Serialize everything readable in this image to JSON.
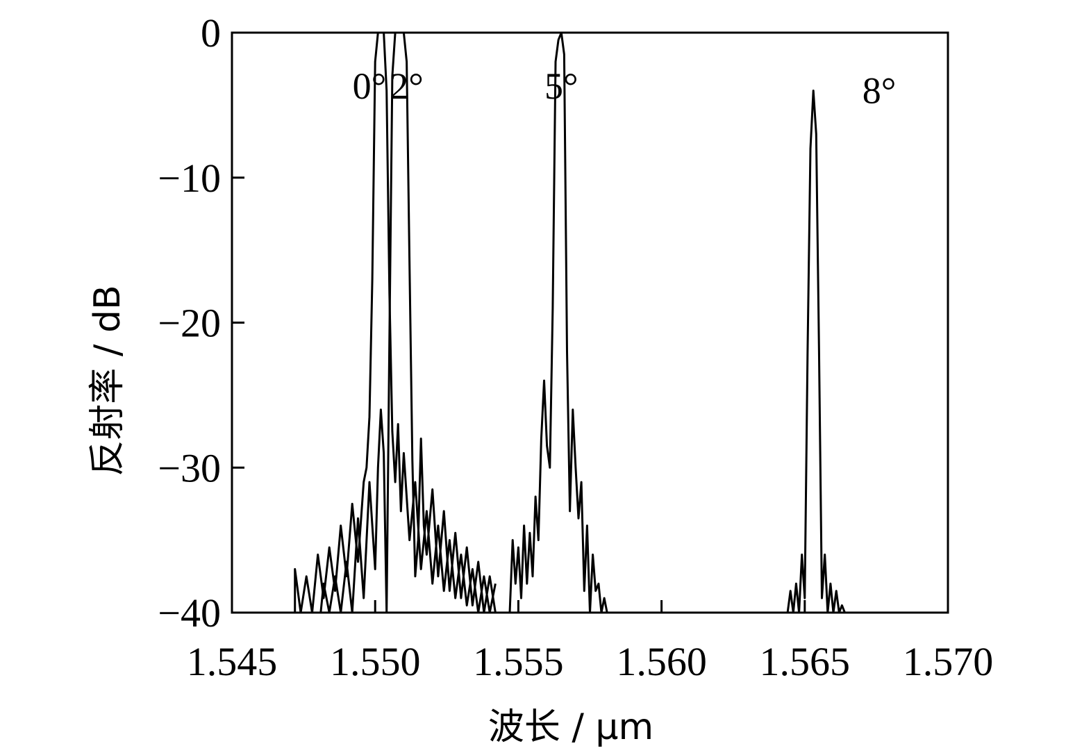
{
  "chart_data": {
    "type": "line",
    "xlabel": "波长 / μm",
    "ylabel": "反射率 / dB",
    "xlim": [
      1.545,
      1.57
    ],
    "ylim": [
      -40,
      0
    ],
    "xticks": [
      1.545,
      1.55,
      1.555,
      1.56,
      1.565,
      1.57
    ],
    "xtick_labels": [
      "1.545",
      "1.550",
      "1.555",
      "1.560",
      "1.565",
      "1.570"
    ],
    "yticks": [
      0,
      -10,
      -20,
      -30,
      -40
    ],
    "ytick_labels": [
      "0",
      "−10",
      "−20",
      "−30",
      "−40"
    ],
    "grid": false,
    "line_color": "#000000",
    "series": [
      {
        "name": "0°",
        "label_at": [
          1.5498,
          -3.7
        ],
        "x": [
          1.5472,
          1.5472,
          1.5474,
          1.5476,
          1.5478,
          1.548,
          1.5482,
          1.5484,
          1.5486,
          1.5488,
          1.549,
          1.5492,
          1.5494,
          1.5496,
          1.5497,
          1.5498,
          1.5499,
          1.55,
          1.5501,
          1.5502,
          1.5503,
          1.5504,
          1.5505,
          1.5506,
          1.5507,
          1.5508,
          1.5509,
          1.551,
          1.5512,
          1.5514,
          1.5516,
          1.5518,
          1.552,
          1.5522,
          1.5524,
          1.5526,
          1.5528,
          1.553,
          1.5532,
          1.5534,
          1.5536,
          1.5538,
          1.554,
          1.5542
        ],
        "y": [
          -40,
          -37,
          -40,
          -37.5,
          -40,
          -36,
          -39,
          -35.5,
          -38.5,
          -34,
          -37.5,
          -32.5,
          -36.5,
          -31,
          -30,
          -26.5,
          -17,
          -2,
          0,
          0,
          0,
          -4,
          -18,
          -27.5,
          -31,
          -27,
          -33,
          -29,
          -35,
          -31,
          -37,
          -33,
          -38,
          -34,
          -38.5,
          -35,
          -39,
          -36,
          -39.5,
          -37,
          -40,
          -37.5,
          -40,
          -38
        ]
      },
      {
        "name": "2°",
        "label_at": [
          1.5511,
          -3.7
        ],
        "x": [
          1.5481,
          1.5482,
          1.5484,
          1.5486,
          1.5488,
          1.549,
          1.5492,
          1.5494,
          1.5496,
          1.5498,
          1.55,
          1.5501,
          1.5502,
          1.5503,
          1.5504,
          1.5505,
          1.5506,
          1.5507,
          1.5508,
          1.5509,
          1.551,
          1.5511,
          1.5512,
          1.5513,
          1.5514,
          1.5515,
          1.5516,
          1.5517,
          1.5518,
          1.552,
          1.5522,
          1.5524,
          1.5526,
          1.5528,
          1.553,
          1.5532,
          1.5534,
          1.5536,
          1.5538,
          1.554,
          1.5542
        ],
        "y": [
          -40,
          -38,
          -40,
          -37.5,
          -40,
          -36.5,
          -40,
          -33.5,
          -39,
          -31,
          -37,
          -30,
          -26,
          -29,
          -40,
          -21,
          -3,
          0,
          0,
          0,
          0,
          -2,
          -16,
          -29.5,
          -37.5,
          -35,
          -28,
          -34,
          -36,
          -31.5,
          -37.5,
          -33,
          -38.5,
          -34.5,
          -39,
          -35.5,
          -39.5,
          -36.5,
          -40,
          -37.5,
          -40
        ]
      },
      {
        "name": "5°",
        "label_at": [
          1.5565,
          -3.7
        ],
        "x": [
          1.5547,
          1.5548,
          1.5549,
          1.555,
          1.5551,
          1.5552,
          1.5553,
          1.5554,
          1.5555,
          1.5556,
          1.5557,
          1.5558,
          1.5559,
          1.556,
          1.5561,
          1.5562,
          1.5563,
          1.5564,
          1.5565,
          1.5566,
          1.5567,
          1.5568,
          1.5569,
          1.557,
          1.5571,
          1.5572,
          1.5573,
          1.5574,
          1.5575,
          1.5576,
          1.5577,
          1.5578,
          1.5579,
          1.558,
          1.5581
        ],
        "y": [
          -40,
          -35,
          -38,
          -35.5,
          -39,
          -34,
          -38,
          -34.5,
          -37.5,
          -32,
          -35,
          -28,
          -24,
          -28.5,
          -30,
          -19,
          -2,
          -0.5,
          0,
          -1.5,
          -22,
          -33,
          -26,
          -30,
          -33.5,
          -31,
          -38.5,
          -34,
          -40,
          -36,
          -38.5,
          -38,
          -40,
          -39,
          -40
        ]
      },
      {
        "name": "8°",
        "label_at": [
          1.5676,
          -4.0
        ],
        "x": [
          1.5644,
          1.5645,
          1.5646,
          1.5647,
          1.5648,
          1.5649,
          1.565,
          1.5651,
          1.5652,
          1.5653,
          1.5654,
          1.5655,
          1.5656,
          1.5657,
          1.5658,
          1.5659,
          1.566,
          1.5661,
          1.5662,
          1.5663,
          1.5664
        ],
        "y": [
          -40,
          -38.5,
          -40,
          -38,
          -40,
          -36,
          -39,
          -22,
          -8,
          -4,
          -7,
          -22,
          -39,
          -36,
          -40,
          -38,
          -40,
          -38.5,
          -40,
          -39.5,
          -40
        ]
      }
    ]
  }
}
